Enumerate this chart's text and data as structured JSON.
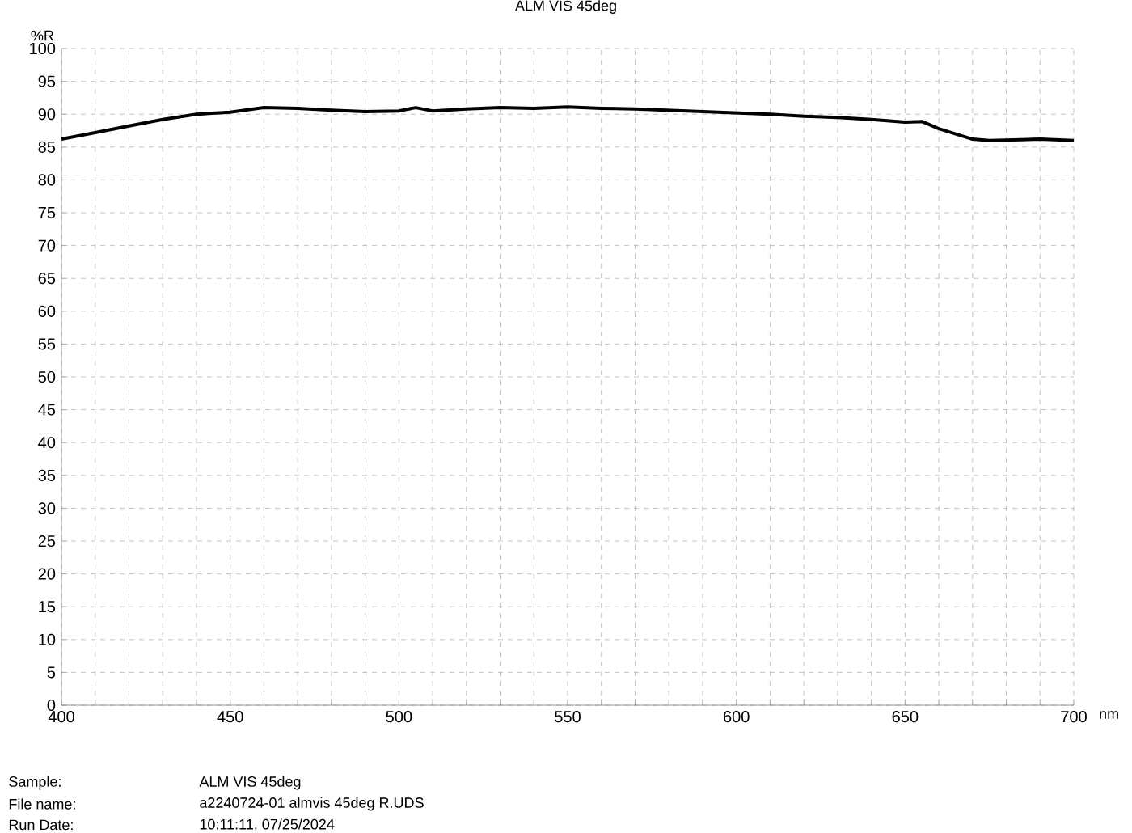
{
  "chart_data": {
    "type": "line",
    "title": "ALM VIS 45deg",
    "xlabel": "nm",
    "ylabel": "%R",
    "x": [
      400,
      410,
      420,
      430,
      440,
      450,
      460,
      470,
      480,
      490,
      500,
      505,
      510,
      520,
      530,
      540,
      550,
      560,
      570,
      580,
      590,
      600,
      610,
      620,
      630,
      640,
      650,
      655,
      660,
      670,
      675,
      690,
      700
    ],
    "series": [
      {
        "color": "#000000",
        "values": [
          86.2,
          87.2,
          88.2,
          89.2,
          90.0,
          90.3,
          91.0,
          90.9,
          90.6,
          90.4,
          90.5,
          91.0,
          90.5,
          90.8,
          91.0,
          90.9,
          91.1,
          90.9,
          90.8,
          90.6,
          90.4,
          90.2,
          90.0,
          89.7,
          89.5,
          89.2,
          88.8,
          88.9,
          87.8,
          86.2,
          86.0,
          86.2,
          86.0
        ]
      }
    ],
    "xlim": [
      400,
      700
    ],
    "ylim": [
      0,
      100
    ],
    "xticks": [
      400,
      {
        "value": 410,
        "label": null
      },
      {
        "value": 420,
        "label": null
      },
      {
        "value": 430,
        "label": null
      },
      {
        "value": 440,
        "label": null
      },
      450,
      {
        "value": 460,
        "label": null
      },
      {
        "value": 470,
        "label": null
      },
      {
        "value": 480,
        "label": null
      },
      {
        "value": 490,
        "label": null
      },
      500,
      {
        "value": 510,
        "label": null
      },
      {
        "value": 520,
        "label": null
      },
      {
        "value": 530,
        "label": null
      },
      {
        "value": 540,
        "label": null
      },
      550,
      {
        "value": 560,
        "label": null
      },
      {
        "value": 570,
        "label": null
      },
      {
        "value": 580,
        "label": null
      },
      {
        "value": 590,
        "label": null
      },
      600,
      {
        "value": 610,
        "label": null
      },
      {
        "value": 620,
        "label": null
      },
      {
        "value": 630,
        "label": null
      },
      {
        "value": 640,
        "label": null
      },
      650,
      {
        "value": 660,
        "label": null
      },
      {
        "value": 670,
        "label": null
      },
      {
        "value": 680,
        "label": null
      },
      {
        "value": 690,
        "label": null
      },
      700
    ],
    "yticks": [
      0,
      5,
      10,
      15,
      20,
      25,
      30,
      35,
      40,
      45,
      50,
      55,
      60,
      65,
      70,
      75,
      80,
      85,
      90,
      95,
      100
    ],
    "grid": true,
    "legend": false,
    "line_style": "solid",
    "marker": "none",
    "annotations": [
      "Sample:",
      "ALM VIS 45deg",
      "File name:",
      "a2240724-01 almvis 45deg R.UDS",
      "Run Date:",
      "10:11:11, 07/25/2024"
    ]
  }
}
